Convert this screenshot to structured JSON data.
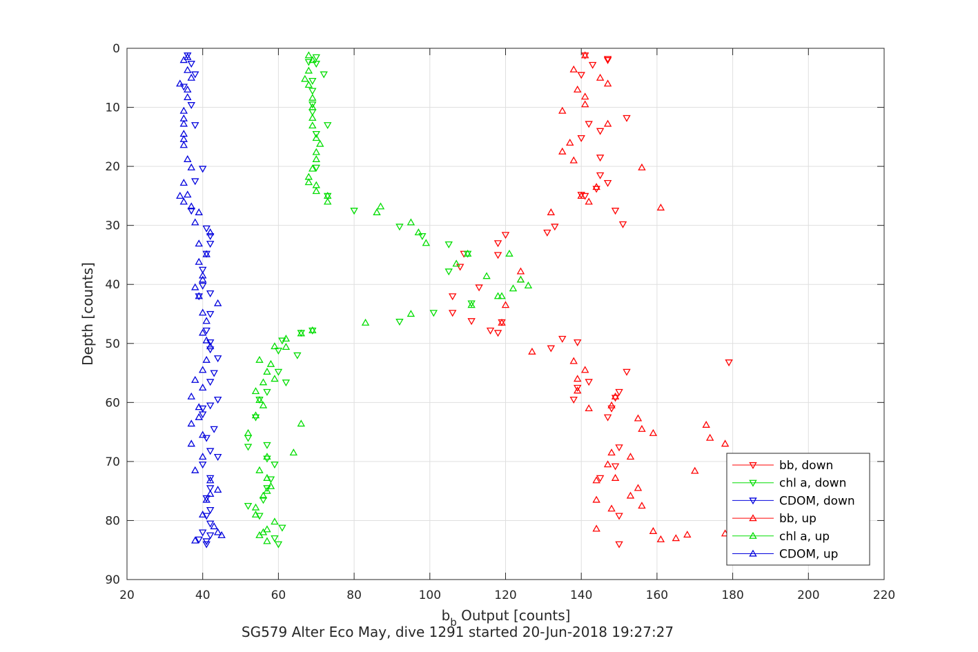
{
  "chart_data": {
    "type": "scatter",
    "title": "",
    "xlabel_main": "b",
    "xlabel_sub": "b",
    "xlabel_rest": " Output [counts]",
    "ylabel": "Depth [counts]",
    "caption": "SG579 Alter Eco May, dive 1291 started 20-Jun-2018 19:27:27",
    "xlim": [
      20,
      220
    ],
    "ylim": [
      0,
      90
    ],
    "y_reversed": true,
    "grid": true,
    "legend_position": "bottom-right",
    "xticks": [
      20,
      40,
      60,
      80,
      100,
      120,
      140,
      160,
      180,
      200,
      220
    ],
    "yticks": [
      0,
      10,
      20,
      30,
      40,
      50,
      60,
      70,
      80,
      90
    ],
    "series": [
      {
        "name": "bb, down",
        "color": "#ff0000",
        "marker": "triangle-down",
        "points": [
          [
            141,
            1.2
          ],
          [
            147,
            1.8
          ],
          [
            143,
            2.8
          ],
          [
            140,
            4.5
          ],
          [
            147,
            2
          ],
          [
            152,
            11.8
          ],
          [
            142,
            12.8
          ],
          [
            145,
            14
          ],
          [
            140,
            15.2
          ],
          [
            145,
            18.5
          ],
          [
            145,
            21.5
          ],
          [
            147,
            22.8
          ],
          [
            144,
            23.8
          ],
          [
            140,
            24.8
          ],
          [
            141,
            25
          ],
          [
            149,
            27.5
          ],
          [
            151,
            29.8
          ],
          [
            133,
            30.2
          ],
          [
            131,
            31.2
          ],
          [
            120,
            31.6
          ],
          [
            118,
            33
          ],
          [
            118,
            35
          ],
          [
            109,
            34.8
          ],
          [
            108,
            37
          ],
          [
            113,
            40.5
          ],
          [
            106,
            42
          ],
          [
            106,
            44.8
          ],
          [
            111,
            46.2
          ],
          [
            119,
            46.4
          ],
          [
            116,
            47.8
          ],
          [
            118,
            48.2
          ],
          [
            135,
            49.2
          ],
          [
            139,
            49.8
          ],
          [
            132,
            50.8
          ],
          [
            179,
            53.2
          ],
          [
            152,
            54.8
          ],
          [
            142,
            56.5
          ],
          [
            139,
            57.5
          ],
          [
            138,
            59.5
          ],
          [
            150,
            58.2
          ],
          [
            149,
            59.2
          ],
          [
            148,
            61
          ],
          [
            147,
            62.5
          ],
          [
            150,
            67.6
          ],
          [
            149,
            70.8
          ],
          [
            145,
            72.8
          ],
          [
            150,
            79.2
          ],
          [
            150,
            84
          ]
        ]
      },
      {
        "name": "chl a, down",
        "color": "#00dd00",
        "marker": "triangle-down",
        "points": [
          [
            70,
            1.5
          ],
          [
            68,
            2.3
          ],
          [
            70,
            2.6
          ],
          [
            72,
            4.4
          ],
          [
            69,
            5.5
          ],
          [
            69,
            7.2
          ],
          [
            69,
            9.5
          ],
          [
            69,
            10.8
          ],
          [
            73,
            13
          ],
          [
            70,
            14.5
          ],
          [
            70,
            20.2
          ],
          [
            73,
            25
          ],
          [
            80,
            27.5
          ],
          [
            92,
            30.2
          ],
          [
            98,
            31.8
          ],
          [
            105,
            33.2
          ],
          [
            110,
            34.8
          ],
          [
            105,
            37.8
          ],
          [
            111,
            43.2
          ],
          [
            101,
            44.8
          ],
          [
            92,
            46.3
          ],
          [
            69,
            47.8
          ],
          [
            66,
            48.2
          ],
          [
            61,
            49.5
          ],
          [
            60,
            51.2
          ],
          [
            65,
            52
          ],
          [
            60,
            54.8
          ],
          [
            62,
            56.6
          ],
          [
            57,
            58.2
          ],
          [
            55,
            59.5
          ],
          [
            54,
            62.5
          ],
          [
            52,
            66
          ],
          [
            57,
            67.2
          ],
          [
            52,
            67.5
          ],
          [
            57,
            69.5
          ],
          [
            59,
            70.5
          ],
          [
            58,
            73
          ],
          [
            57,
            74.5
          ],
          [
            56,
            76.5
          ],
          [
            52,
            77.5
          ],
          [
            55,
            79.2
          ],
          [
            61,
            81.2
          ],
          [
            59,
            83
          ],
          [
            60,
            84
          ]
        ]
      },
      {
        "name": "CDOM, down",
        "color": "#0000dd",
        "marker": "triangle-down",
        "points": [
          [
            36,
            1.2
          ],
          [
            37,
            2.6
          ],
          [
            38,
            4.4
          ],
          [
            35,
            6.5
          ],
          [
            37,
            9.6
          ],
          [
            38,
            13
          ],
          [
            40,
            20.4
          ],
          [
            38,
            22.5
          ],
          [
            37,
            27.5
          ],
          [
            41,
            30.5
          ],
          [
            42,
            31.8
          ],
          [
            42,
            33.1
          ],
          [
            41,
            34.8
          ],
          [
            40,
            37.5
          ],
          [
            40,
            40.2
          ],
          [
            42,
            41.5
          ],
          [
            39,
            42
          ],
          [
            42,
            45
          ],
          [
            41,
            47.8
          ],
          [
            42,
            49.8
          ],
          [
            42,
            51
          ],
          [
            44,
            52.5
          ],
          [
            43,
            55
          ],
          [
            42,
            56.5
          ],
          [
            44,
            59.5
          ],
          [
            42,
            60.5
          ],
          [
            40,
            61
          ],
          [
            40,
            62
          ],
          [
            43,
            64.5
          ],
          [
            41,
            66
          ],
          [
            42,
            68.2
          ],
          [
            44,
            69.2
          ],
          [
            40,
            70.5
          ],
          [
            42,
            72.8
          ],
          [
            42,
            74.5
          ],
          [
            41,
            76.2
          ],
          [
            42,
            78.2
          ],
          [
            41,
            79.2
          ],
          [
            42,
            80.5
          ],
          [
            40,
            82
          ],
          [
            42,
            82.5
          ],
          [
            41,
            83.5
          ],
          [
            41,
            84
          ],
          [
            39,
            83.2
          ]
        ]
      },
      {
        "name": "bb, up",
        "color": "#ff0000",
        "marker": "triangle-up",
        "points": [
          [
            141,
            1.2
          ],
          [
            138,
            3.6
          ],
          [
            145,
            5
          ],
          [
            147,
            6
          ],
          [
            139,
            7
          ],
          [
            141,
            8.2
          ],
          [
            141,
            9.5
          ],
          [
            135,
            10.6
          ],
          [
            147,
            12.8
          ],
          [
            137,
            16
          ],
          [
            135,
            17.5
          ],
          [
            138,
            19
          ],
          [
            156,
            20.2
          ],
          [
            144,
            23.5
          ],
          [
            140,
            25
          ],
          [
            142,
            26
          ],
          [
            161,
            27
          ],
          [
            132,
            27.8
          ],
          [
            124,
            37.8
          ],
          [
            124,
            39.2
          ],
          [
            120,
            43.5
          ],
          [
            119,
            46.5
          ],
          [
            127,
            51.4
          ],
          [
            138,
            53
          ],
          [
            141,
            54.5
          ],
          [
            139,
            56
          ],
          [
            139,
            58
          ],
          [
            142,
            61
          ],
          [
            149,
            59
          ],
          [
            148,
            60.5
          ],
          [
            155,
            62.7
          ],
          [
            156,
            64.5
          ],
          [
            159,
            65.2
          ],
          [
            173,
            63.8
          ],
          [
            174,
            66
          ],
          [
            178,
            67
          ],
          [
            148,
            68.5
          ],
          [
            153,
            69.2
          ],
          [
            147,
            70.5
          ],
          [
            170,
            71.6
          ],
          [
            144,
            73.2
          ],
          [
            149,
            72.8
          ],
          [
            155,
            74.5
          ],
          [
            153,
            75.8
          ],
          [
            156,
            77.5
          ],
          [
            144,
            76.5
          ],
          [
            148,
            78
          ],
          [
            144,
            81.4
          ],
          [
            159,
            81.8
          ],
          [
            161,
            83.2
          ],
          [
            165,
            83
          ],
          [
            168,
            82.4
          ],
          [
            178,
            82.2
          ]
        ]
      },
      {
        "name": "chl a, up",
        "color": "#00dd00",
        "marker": "triangle-up",
        "points": [
          [
            68,
            1.2
          ],
          [
            69,
            2
          ],
          [
            68,
            3.8
          ],
          [
            67,
            5.2
          ],
          [
            68,
            6.2
          ],
          [
            69,
            8.4
          ],
          [
            69,
            10
          ],
          [
            69,
            11.8
          ],
          [
            69,
            13.1
          ],
          [
            70,
            15.2
          ],
          [
            71,
            16.2
          ],
          [
            70,
            17.6
          ],
          [
            70,
            18.8
          ],
          [
            69,
            20.4
          ],
          [
            68,
            21.8
          ],
          [
            68,
            22.7
          ],
          [
            70,
            23.2
          ],
          [
            70,
            24.2
          ],
          [
            73,
            25
          ],
          [
            73,
            26
          ],
          [
            87,
            26.8
          ],
          [
            86,
            27.8
          ],
          [
            95,
            29.5
          ],
          [
            97,
            31.2
          ],
          [
            99,
            33
          ],
          [
            110,
            34.8
          ],
          [
            121,
            34.8
          ],
          [
            107,
            36.5
          ],
          [
            115,
            38.6
          ],
          [
            124,
            39.2
          ],
          [
            126,
            40.2
          ],
          [
            122,
            40.7
          ],
          [
            118,
            42
          ],
          [
            119,
            42
          ],
          [
            111,
            43.5
          ],
          [
            95,
            45
          ],
          [
            83,
            46.5
          ],
          [
            69,
            47.8
          ],
          [
            66,
            48.3
          ],
          [
            62,
            49.2
          ],
          [
            59,
            50.5
          ],
          [
            62,
            50.6
          ],
          [
            55,
            52.8
          ],
          [
            58,
            53.5
          ],
          [
            57,
            54.8
          ],
          [
            56,
            56.6
          ],
          [
            59,
            56
          ],
          [
            54,
            58.1
          ],
          [
            55,
            59.6
          ],
          [
            56,
            60.5
          ],
          [
            54,
            62.2
          ],
          [
            66,
            63.6
          ],
          [
            52,
            65.2
          ],
          [
            64,
            68.5
          ],
          [
            57,
            69.2
          ],
          [
            55,
            71.5
          ],
          [
            57,
            72.8
          ],
          [
            58,
            74.2
          ],
          [
            57,
            75
          ],
          [
            56,
            75.8
          ],
          [
            54,
            77.8
          ],
          [
            54,
            79
          ],
          [
            59,
            80.2
          ],
          [
            57,
            81.5
          ],
          [
            55,
            82.5
          ],
          [
            57,
            83.5
          ],
          [
            56,
            82
          ]
        ]
      },
      {
        "name": "CDOM, up",
        "color": "#0000dd",
        "marker": "triangle-up",
        "points": [
          [
            36,
            1.5
          ],
          [
            35,
            2
          ],
          [
            36,
            3.7
          ],
          [
            37,
            5
          ],
          [
            34,
            6
          ],
          [
            36,
            7
          ],
          [
            36,
            8.3
          ],
          [
            35,
            10.6
          ],
          [
            35,
            11.9
          ],
          [
            35,
            12.8
          ],
          [
            35,
            14.5
          ],
          [
            35,
            15.4
          ],
          [
            35,
            16.4
          ],
          [
            36,
            18.8
          ],
          [
            37,
            20.2
          ],
          [
            35,
            22.8
          ],
          [
            36,
            24.8
          ],
          [
            34,
            25
          ],
          [
            35,
            26
          ],
          [
            37,
            26.8
          ],
          [
            39,
            27.8
          ],
          [
            38,
            29.5
          ],
          [
            42,
            31.2
          ],
          [
            39,
            33.1
          ],
          [
            41,
            34.9
          ],
          [
            39,
            36.2
          ],
          [
            40,
            38.5
          ],
          [
            40,
            39.2
          ],
          [
            38,
            40.5
          ],
          [
            39,
            42
          ],
          [
            44,
            43.2
          ],
          [
            40,
            44.8
          ],
          [
            41,
            46.2
          ],
          [
            40,
            48.2
          ],
          [
            41,
            49.5
          ],
          [
            42,
            50.5
          ],
          [
            41,
            52.8
          ],
          [
            40,
            54.5
          ],
          [
            38,
            56.2
          ],
          [
            40,
            57.5
          ],
          [
            37,
            59
          ],
          [
            39,
            60.8
          ],
          [
            39,
            62.5
          ],
          [
            37,
            63.6
          ],
          [
            40,
            65.5
          ],
          [
            37,
            67
          ],
          [
            40,
            69.2
          ],
          [
            38,
            71.5
          ],
          [
            42,
            73.2
          ],
          [
            44,
            74.8
          ],
          [
            42,
            75.5
          ],
          [
            41,
            76.5
          ],
          [
            40,
            79
          ],
          [
            43,
            81
          ],
          [
            44,
            82
          ],
          [
            45,
            82.5
          ],
          [
            38,
            83.4
          ]
        ]
      }
    ]
  }
}
